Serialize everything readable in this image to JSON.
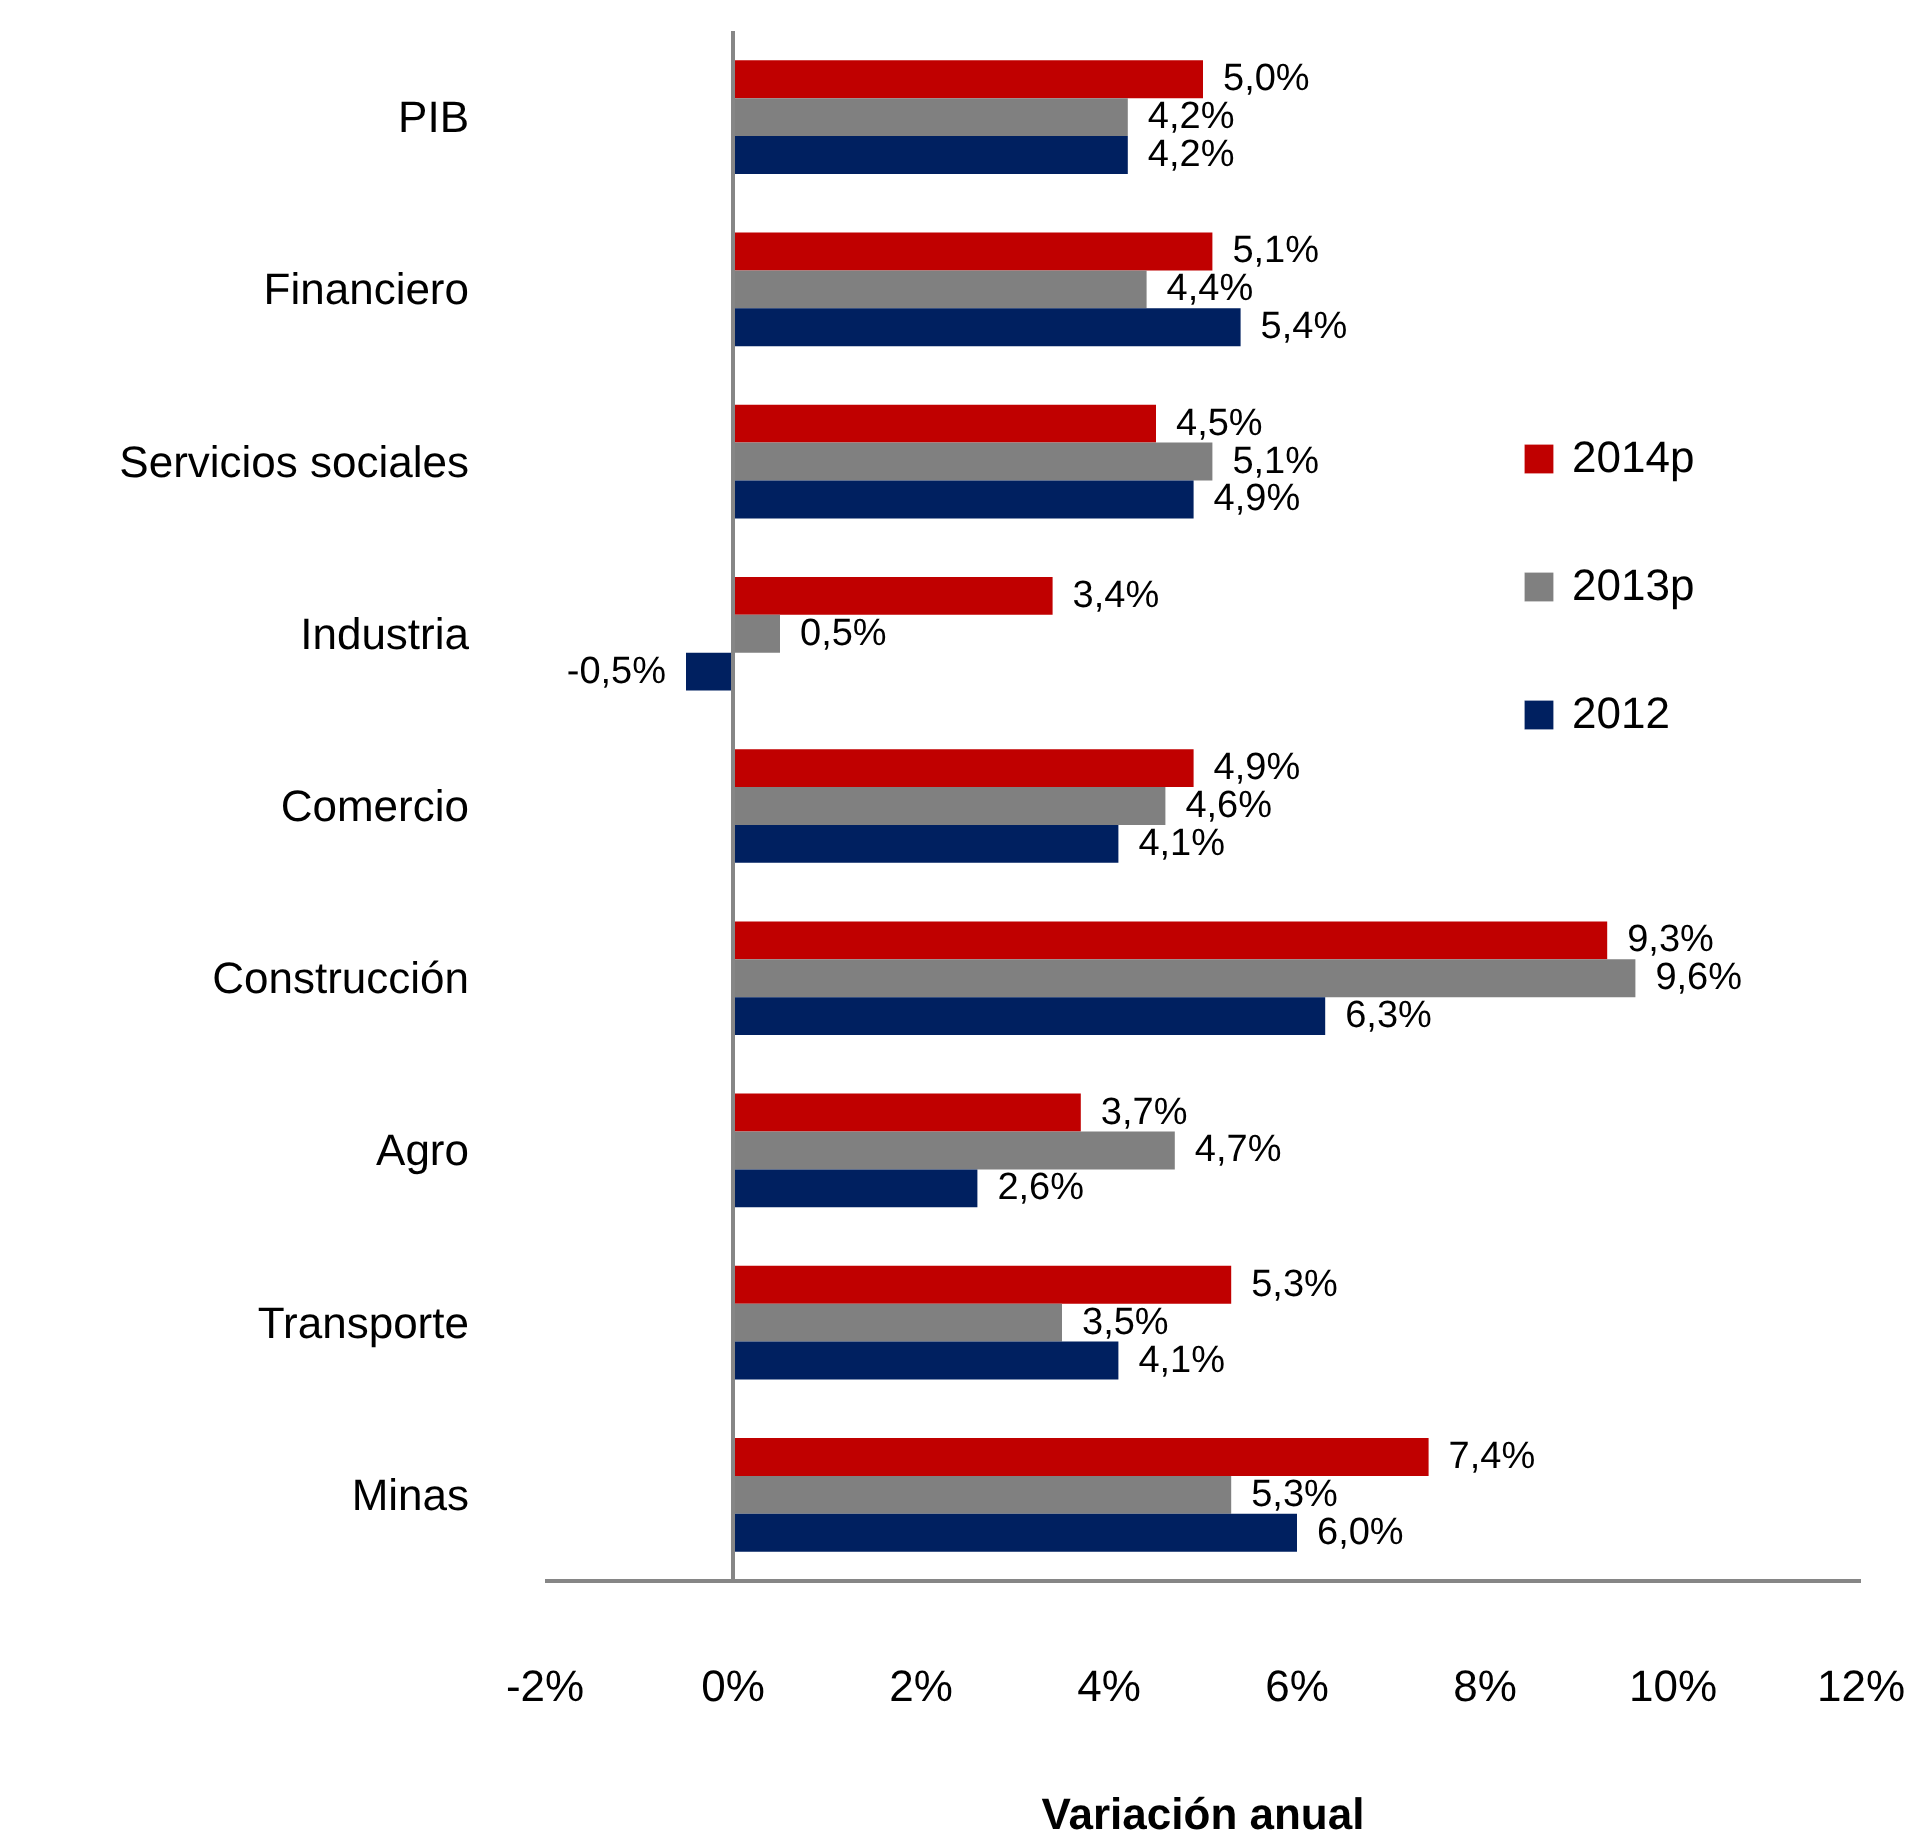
{
  "chart_data": {
    "type": "bar",
    "orientation": "horizontal",
    "xlabel": "Variación anual",
    "categories": [
      "PIB",
      "Financiero",
      "Servicios sociales",
      "Industria",
      "Comercio",
      "Construcción",
      "Agro",
      "Transporte",
      "Minas"
    ],
    "series": [
      {
        "name": "2014p",
        "color": "#c00000",
        "values": [
          5.0,
          5.1,
          4.5,
          3.4,
          4.9,
          9.3,
          3.7,
          5.3,
          7.4
        ],
        "value_labels": [
          "5,0%",
          "5,1%",
          "4,5%",
          "3,4%",
          "4,9%",
          "9,3%",
          "3,7%",
          "5,3%",
          "7,4%"
        ]
      },
      {
        "name": "2013p",
        "color": "#808080",
        "values": [
          4.2,
          4.4,
          5.1,
          0.5,
          4.6,
          9.6,
          4.7,
          3.5,
          5.3
        ],
        "value_labels": [
          "4,2%",
          "4,4%",
          "5,1%",
          "0,5%",
          "4,6%",
          "9,6%",
          "4,7%",
          "3,5%",
          "5,3%"
        ]
      },
      {
        "name": "2012",
        "color": "#002060",
        "values": [
          4.2,
          5.4,
          4.9,
          -0.5,
          4.1,
          6.3,
          2.6,
          4.1,
          6.0
        ],
        "value_labels": [
          "4,2%",
          "5,4%",
          "4,9%",
          "-0,5%",
          "4,1%",
          "6,3%",
          "2,6%",
          "4,1%",
          "6,0%"
        ]
      }
    ],
    "xlim": [
      -2,
      12
    ],
    "xticks": [
      {
        "value": -2,
        "label": "-2%"
      },
      {
        "value": 0,
        "label": "0%"
      },
      {
        "value": 2,
        "label": "2%"
      },
      {
        "value": 4,
        "label": "4%"
      },
      {
        "value": 6,
        "label": "6%"
      },
      {
        "value": 8,
        "label": "8%"
      },
      {
        "value": 10,
        "label": "10%"
      },
      {
        "value": 12,
        "label": "12%"
      }
    ],
    "ref_lines": [
      {
        "axis": "x",
        "value": 0,
        "color": "#868686"
      }
    ],
    "legend": "right"
  }
}
